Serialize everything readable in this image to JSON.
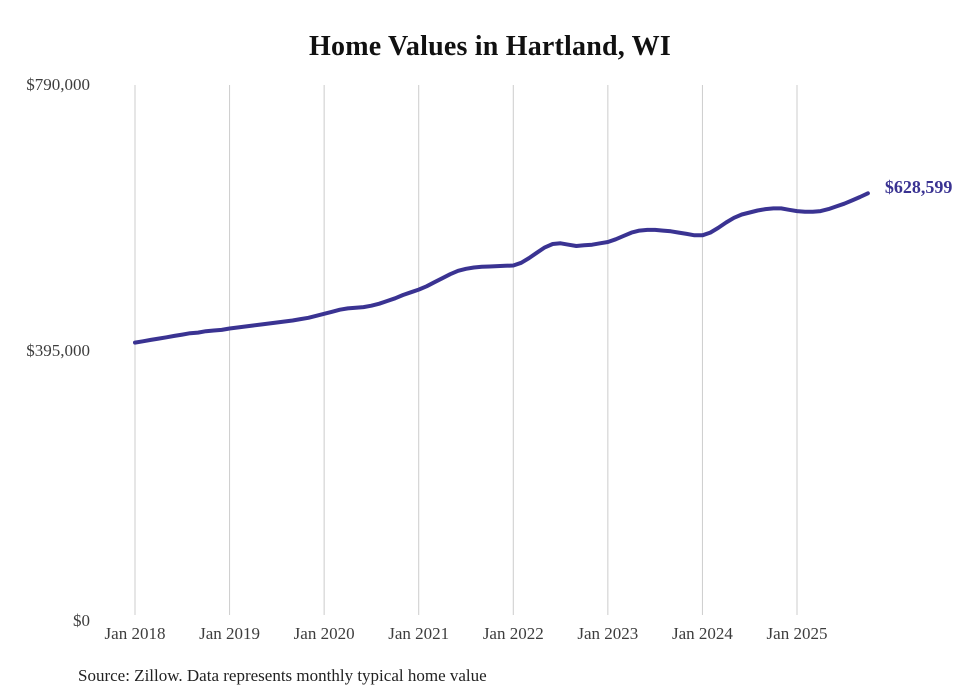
{
  "title": "Home Values in Hartland, WI",
  "source_note": "Source: Zillow. Data represents monthly typical home value",
  "end_label": "$628,599",
  "colors": {
    "line": "#3a3392",
    "end_label": "#3a3392",
    "grid": "#cccccc",
    "axis_text": "#3d3d3d",
    "title_text": "#111111",
    "source_text": "#222222",
    "background": "#ffffff"
  },
  "chart_data": {
    "type": "line",
    "title": "Home Values in Hartland, WI",
    "xlabel": "",
    "ylabel": "",
    "ylim": [
      0,
      790000
    ],
    "grid": "vertical-only",
    "legend": "none",
    "y_tick_labels": [
      "$0",
      "$395,000",
      "$790,000"
    ],
    "y_tick_values": [
      0,
      395000,
      790000
    ],
    "x_tick_labels": [
      "Jan 2018",
      "Jan 2019",
      "Jan 2020",
      "Jan 2021",
      "Jan 2022",
      "Jan 2023",
      "Jan 2024",
      "Jan 2025"
    ],
    "frequency": "monthly",
    "x_start_month": "2018-01",
    "x_end_month": "2025-10",
    "latest_value": 628599,
    "series": [
      {
        "name": "Typical home value",
        "values": [
          406000,
          408000,
          410000,
          412000,
          414000,
          416000,
          418000,
          420000,
          421000,
          423000,
          424000,
          425000,
          427000,
          428500,
          430000,
          431500,
          433000,
          434500,
          436000,
          437500,
          439000,
          441000,
          443000,
          446000,
          449000,
          452000,
          455000,
          457000,
          458000,
          459000,
          461000,
          464000,
          468000,
          472000,
          477000,
          481000,
          485000,
          490000,
          496000,
          502000,
          508000,
          513000,
          516000,
          518000,
          519000,
          519500,
          520000,
          520500,
          521000,
          525000,
          532000,
          540000,
          548000,
          553000,
          554000,
          552000,
          550000,
          551000,
          552000,
          554000,
          556000,
          560000,
          565000,
          570000,
          573000,
          574000,
          574000,
          573000,
          572000,
          570000,
          568000,
          566000,
          566000,
          570000,
          577000,
          585000,
          592000,
          597000,
          600000,
          603000,
          605000,
          606000,
          606000,
          604000,
          602000,
          601000,
          601000,
          602000,
          605000,
          609000,
          613000,
          618000,
          623000,
          628599
        ]
      }
    ]
  }
}
